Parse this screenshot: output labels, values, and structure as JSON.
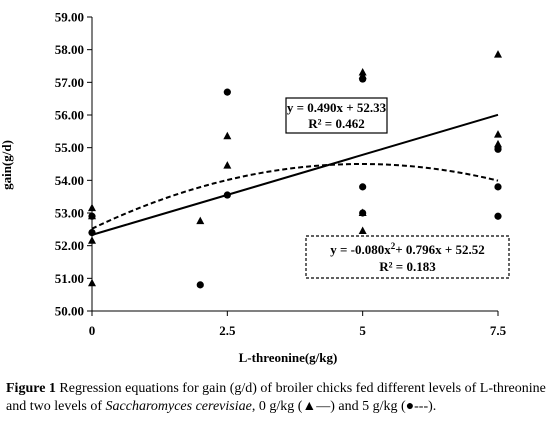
{
  "chart_data": {
    "type": "scatter",
    "title": "",
    "xlabel": "L-threonine(g/kg)",
    "ylabel": "gain(g/d)",
    "xlim": [
      0,
      7.5
    ],
    "ylim": [
      50,
      59
    ],
    "x_ticks": [
      0,
      2.5,
      5,
      7.5
    ],
    "x_tick_labels": [
      "0",
      "2.5",
      "5",
      "7.5"
    ],
    "y_ticks": [
      50,
      51,
      52,
      53,
      54,
      55,
      56,
      57,
      58,
      59
    ],
    "y_tick_labels": [
      "50.00",
      "51.00",
      "52.00",
      "53.00",
      "54.00",
      "55.00",
      "56.00",
      "57.00",
      "58.00",
      "59.00"
    ],
    "grid": false,
    "series": [
      {
        "marker": "triangle",
        "color": "#000000",
        "points": [
          {
            "x": 0,
            "y": 53.15
          },
          {
            "x": 0,
            "y": 52.9
          },
          {
            "x": 0,
            "y": 52.15
          },
          {
            "x": 0,
            "y": 50.85
          },
          {
            "x": 2,
            "y": 52.75
          },
          {
            "x": 2.5,
            "y": 55.35
          },
          {
            "x": 2.5,
            "y": 54.45
          },
          {
            "x": 5,
            "y": 57.3
          },
          {
            "x": 5,
            "y": 57.2
          },
          {
            "x": 5,
            "y": 53.0
          },
          {
            "x": 5,
            "y": 52.45
          },
          {
            "x": 7.5,
            "y": 57.85
          },
          {
            "x": 7.5,
            "y": 55.4
          },
          {
            "x": 7.5,
            "y": 55.1
          }
        ]
      },
      {
        "marker": "circle",
        "color": "#000000",
        "points": [
          {
            "x": 0,
            "y": 52.9
          },
          {
            "x": 0,
            "y": 52.4
          },
          {
            "x": 2,
            "y": 50.8
          },
          {
            "x": 2.5,
            "y": 56.7
          },
          {
            "x": 2.5,
            "y": 53.55
          },
          {
            "x": 5,
            "y": 57.1
          },
          {
            "x": 5,
            "y": 53.8
          },
          {
            "x": 5,
            "y": 53.0
          },
          {
            "x": 7.5,
            "y": 54.95
          },
          {
            "x": 7.5,
            "y": 53.8
          },
          {
            "x": 7.5,
            "y": 52.9
          }
        ]
      }
    ],
    "fits": [
      {
        "kind": "linear",
        "style": "solid",
        "coefficients": [
          0.49,
          52.33
        ],
        "equation": "y = 0.490x + 52.33",
        "r2_label": "R² = 0.462"
      },
      {
        "kind": "quadratic",
        "style": "dashed",
        "coefficients": [
          -0.08,
          0.796,
          52.52
        ],
        "equation_prefix": "y = -0.080x",
        "equation_exp": "2",
        "equation_suffix": "+ 0.796x + 52.52",
        "r2_label": "R² = 0.183"
      }
    ]
  },
  "caption": {
    "lead": "Figure 1",
    "text1": " Regression equations for gain (g/d) of broiler chicks fed different levels of L-threonine and two levels of ",
    "species": "Saccharomyces cerevisiae",
    "text2": ", 0 g/kg (",
    "key0": "▲—",
    "text3": ") and 5 g/kg (",
    "key5": "●---",
    "text4": ")."
  }
}
